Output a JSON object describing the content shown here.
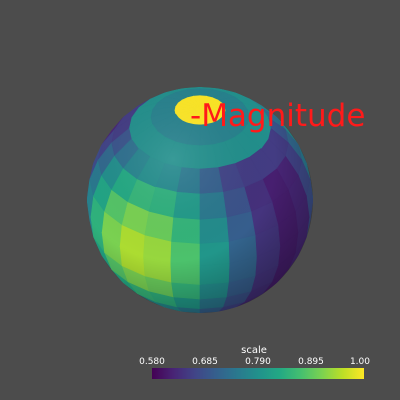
{
  "render": {
    "background": "#4c4c4c",
    "object": "sphere",
    "colormap": "viridis"
  },
  "label": {
    "text": "Magnitude",
    "color": "#ff1a1a"
  },
  "scalar_bar": {
    "title": "scale",
    "ticks": [
      "0.580",
      "0.685",
      "0.790",
      "0.895",
      "1.00"
    ],
    "range": [
      0.58,
      1.0
    ]
  }
}
